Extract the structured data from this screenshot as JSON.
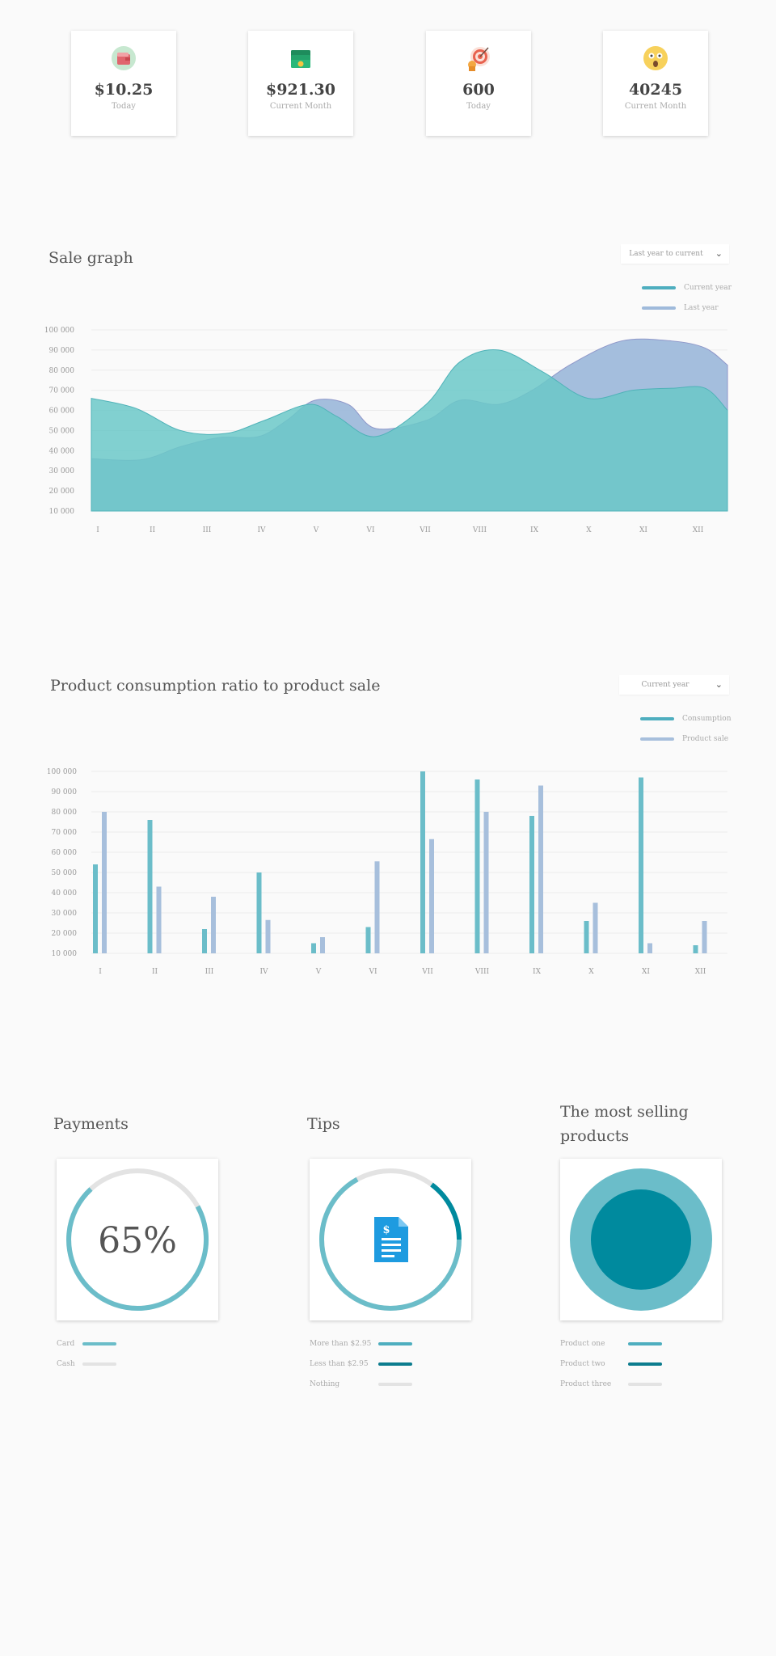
{
  "cards": [
    {
      "value": "$10.25",
      "label": "Today",
      "icon": "wallet-icon"
    },
    {
      "value": "$921.30",
      "label": "Current Month",
      "icon": "money-stack-icon"
    },
    {
      "value": "600",
      "label": "Today",
      "icon": "target-icon"
    },
    {
      "value": "40245",
      "label": "Current Month",
      "icon": "customer-face-icon"
    }
  ],
  "sale_graph": {
    "title": "Sale graph",
    "period_select": "Last year to current",
    "legend": {
      "current": "Current year",
      "last": "Last  year"
    }
  },
  "consumption": {
    "title": "Product consumption ratio  to  product sale",
    "period_select": "Current year",
    "legend": {
      "consumption": "Consumption",
      "sale": "Product sale"
    }
  },
  "payments": {
    "title": "Payments",
    "percent_text": "65%",
    "legend": [
      "Card",
      "Cash"
    ]
  },
  "tips": {
    "title": "Tips",
    "legend": [
      "More than $2.95",
      "Less than $2.95",
      "Nothing"
    ]
  },
  "best_selling": {
    "title": "The most selling products",
    "legend": [
      "Product one",
      "Product two",
      "Product three"
    ]
  },
  "colors": {
    "teal": "#6bbdc9",
    "blue": "#9fbadb",
    "dark_teal": "#008a9e",
    "grey": "#e3e3e3"
  },
  "chart_data": [
    {
      "type": "area",
      "title": "Sale graph",
      "categories": [
        "I",
        "II",
        "III",
        "IV",
        "V",
        "VI",
        "VII",
        "VIII",
        "IX",
        "X",
        "XI",
        "XII"
      ],
      "y_tick_labels": [
        "100  000",
        "90 000",
        "80 000",
        "70 000",
        "60 000",
        "50 000",
        "40 000",
        "30 000",
        "20 000",
        "10 000"
      ],
      "ylim": [
        10000,
        100000
      ],
      "series": [
        {
          "name": "Current year",
          "color": "#6bc8c8",
          "x": [
            0,
            0.8,
            1.6,
            2.4,
            3.1,
            3.9,
            4.4,
            5.1,
            6.0,
            6.6,
            7.3,
            8.1,
            8.9,
            9.7,
            10.4,
            11.0,
            11.4
          ],
          "values": [
            66000,
            61000,
            50000,
            48500,
            55000,
            63000,
            57000,
            47000,
            63000,
            84000,
            90000,
            79000,
            66000,
            70000,
            71000,
            71000,
            60000
          ]
        },
        {
          "name": "Last  year",
          "color": "#9fbadb",
          "x": [
            0,
            0.9,
            1.6,
            2.3,
            3.0,
            3.5,
            4.0,
            4.6,
            5.1,
            6.0,
            6.6,
            7.3,
            7.9,
            8.6,
            9.5,
            10.4,
            11.0,
            11.4
          ],
          "values": [
            36000,
            35500,
            42000,
            46500,
            47000,
            55000,
            65000,
            63000,
            51000,
            55000,
            65000,
            63000,
            70000,
            83000,
            94500,
            94500,
            91000,
            82500
          ]
        }
      ]
    },
    {
      "type": "bar",
      "title": "Product consumption ratio  to  product sale",
      "categories": [
        "I",
        "II",
        "III",
        "IV",
        "V",
        "VI",
        "VII",
        "VIII",
        "IX",
        "X",
        "XI",
        "XII"
      ],
      "y_tick_labels": [
        "100  000",
        "90 000",
        "80 000",
        "70 000",
        "60 000",
        "50 000",
        "40 000",
        "30 000",
        "20 000",
        "10 000"
      ],
      "ylim": [
        10000,
        100000
      ],
      "series": [
        {
          "name": "Consumption",
          "color": "#6bbdc9",
          "values": [
            54000,
            76000,
            22000,
            50000,
            15000,
            23000,
            100000,
            96000,
            78000,
            26000,
            97000,
            14000
          ]
        },
        {
          "name": "Product sale",
          "color": "#a7bfdc",
          "values": [
            80000,
            43000,
            38000,
            26500,
            18000,
            55500,
            66500,
            80000,
            93000,
            35000,
            15000,
            26000
          ]
        }
      ]
    },
    {
      "type": "pie",
      "title": "Payments",
      "labels": [
        "Card",
        "Cash"
      ],
      "values": [
        65,
        35
      ]
    }
  ]
}
